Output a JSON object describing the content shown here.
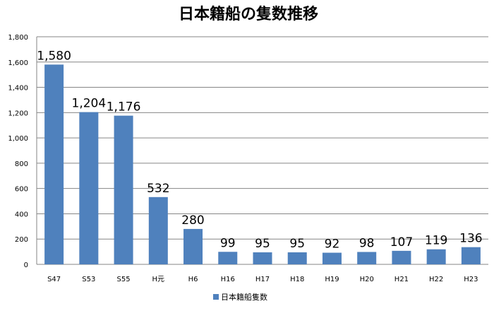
{
  "chart_data": {
    "type": "bar",
    "title": "日本籍船の隻数推移",
    "categories": [
      "S47",
      "S53",
      "S55",
      "H元",
      "H6",
      "H16",
      "H17",
      "H18",
      "H19",
      "H20",
      "H21",
      "H22",
      "H23"
    ],
    "series": [
      {
        "name": "日本籍船隻数",
        "values": [
          1580,
          1204,
          1176,
          532,
          280,
          99,
          95,
          95,
          92,
          98,
          107,
          119,
          136
        ]
      }
    ],
    "data_labels": [
      "1,580",
      "1,204",
      "1,176",
      "532",
      "280",
      "99",
      "95",
      "95",
      "92",
      "98",
      "107",
      "119",
      "136"
    ],
    "y_ticks": [
      0,
      200,
      400,
      600,
      800,
      1000,
      1200,
      1400,
      1600,
      1800
    ],
    "y_tick_labels": [
      "0",
      "200",
      "400",
      "600",
      "800",
      "1,000",
      "1,200",
      "1,400",
      "1,600",
      "1,800"
    ],
    "ylim": [
      0,
      1800
    ],
    "grid": true,
    "legend_position": "bottom",
    "colors": {
      "bar": "#4f81bd",
      "grid": "#868686",
      "axis": "#868686"
    }
  }
}
